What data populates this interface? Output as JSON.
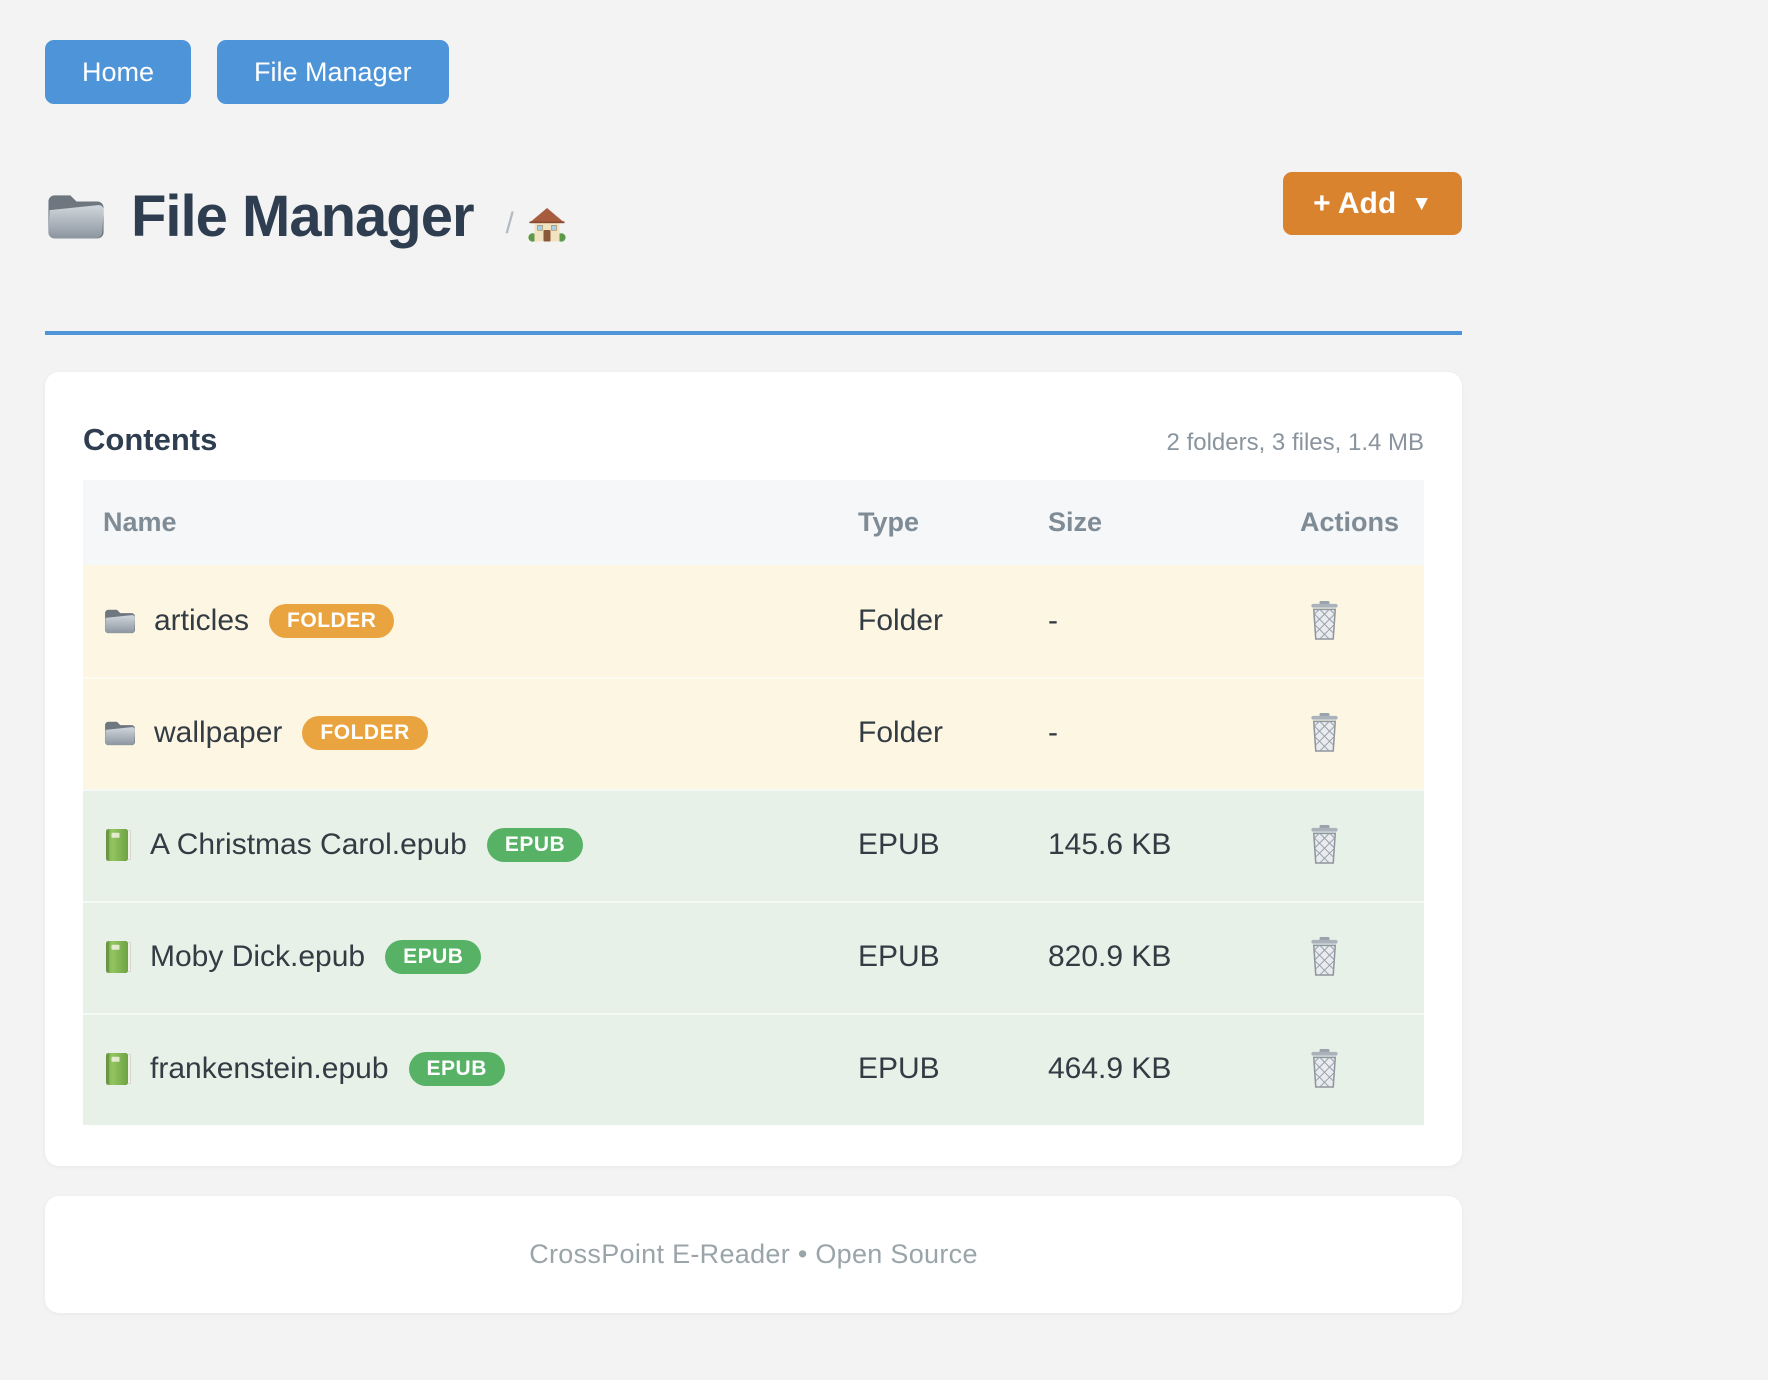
{
  "nav": {
    "items": [
      {
        "label": "Home"
      },
      {
        "label": "File Manager"
      }
    ]
  },
  "header": {
    "title": "File Manager",
    "title_icon": "folder-icon",
    "breadcrumb_separator": "/",
    "breadcrumb_home_icon": "home-icon",
    "add_button": {
      "label": "+ Add",
      "caret": "▼"
    }
  },
  "card": {
    "title": "Contents",
    "summary": "2 folders, 3 files, 1.4 MB",
    "table": {
      "columns": [
        "Name",
        "Type",
        "Size",
        "Actions"
      ],
      "rows": [
        {
          "name": "articles",
          "icon": "folder-icon",
          "badge": "FOLDER",
          "type": "Folder",
          "size": "-",
          "kind": "folder"
        },
        {
          "name": "wallpaper",
          "icon": "folder-icon",
          "badge": "FOLDER",
          "type": "Folder",
          "size": "-",
          "kind": "folder"
        },
        {
          "name": "A Christmas Carol.epub",
          "icon": "book-icon",
          "badge": "EPUB",
          "type": "EPUB",
          "size": "145.6 KB",
          "kind": "epub"
        },
        {
          "name": "Moby Dick.epub",
          "icon": "book-icon",
          "badge": "EPUB",
          "type": "EPUB",
          "size": "820.9 KB",
          "kind": "epub"
        },
        {
          "name": "frankenstein.epub",
          "icon": "book-icon",
          "badge": "EPUB",
          "type": "EPUB",
          "size": "464.9 KB",
          "kind": "epub"
        }
      ],
      "action_icon": "trash-icon"
    }
  },
  "footer": {
    "text": "CrossPoint E-Reader • Open Source"
  },
  "colors": {
    "nav_button": "#4e94d8",
    "rule": "#4e94d8",
    "add_button": "#d9832f",
    "folder_badge": "#e9a43f",
    "epub_badge": "#57b266",
    "folder_row_bg": "#fdf6e2",
    "epub_row_bg": "#e7f1e8",
    "table_header_bg": "#f5f7f9"
  }
}
